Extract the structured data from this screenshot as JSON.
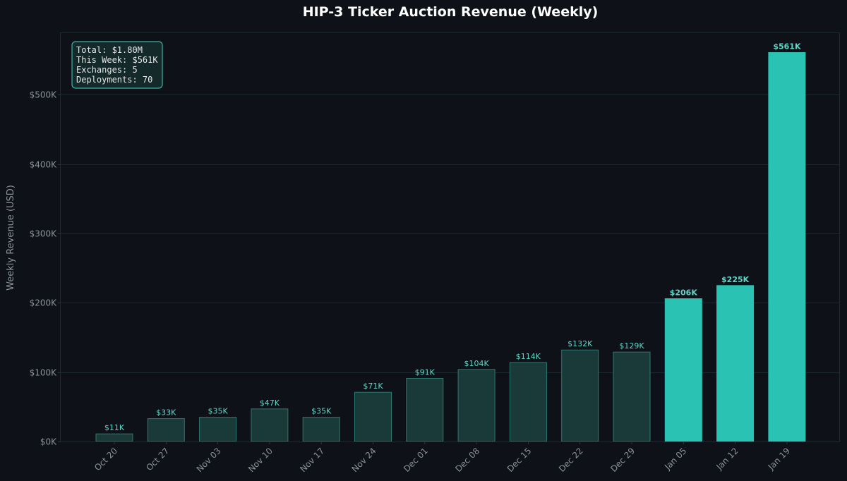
{
  "chart_data": {
    "type": "bar",
    "title": "HIP-3 Ticker Auction Revenue (Weekly)",
    "xlabel": "",
    "ylabel": "Weekly Revenue (USD)",
    "ylim": [
      0,
      590000
    ],
    "yticks": [
      0,
      100000,
      200000,
      300000,
      400000,
      500000
    ],
    "ytick_labels": [
      "$0K",
      "$100K",
      "$200K",
      "$300K",
      "$400K",
      "$500K"
    ],
    "categories": [
      "Oct 20",
      "Oct 27",
      "Nov 03",
      "Nov 10",
      "Nov 17",
      "Nov 24",
      "Dec 01",
      "Dec 08",
      "Dec 15",
      "Dec 22",
      "Dec 29",
      "Jan 05",
      "Jan 12",
      "Jan 19"
    ],
    "values": [
      11000,
      33000,
      35000,
      47000,
      35000,
      71000,
      91000,
      104000,
      114000,
      132000,
      129000,
      206000,
      225000,
      561000
    ],
    "value_labels": [
      "$11K",
      "$33K",
      "$35K",
      "$47K",
      "$35K",
      "$71K",
      "$91K",
      "$104K",
      "$114K",
      "$132K",
      "$129K",
      "$206K",
      "$225K",
      "$561K"
    ],
    "highlighted": [
      false,
      false,
      false,
      false,
      false,
      false,
      false,
      false,
      false,
      false,
      false,
      true,
      true,
      true
    ],
    "grid": true,
    "colors": {
      "background": "#0e1117",
      "bar": "#1a3a3a",
      "bar_edge": "#2a7a72",
      "bar_highlight": "#2ac3b3",
      "grid": "#1c2a30",
      "axis": "#2a3a3e",
      "label": "#5fd7c8"
    },
    "stats_box": {
      "placement": "top-left",
      "lines": [
        "Total: $1.80M",
        "This Week: $561K",
        "Exchanges: 5",
        "Deployments: 70"
      ]
    }
  }
}
